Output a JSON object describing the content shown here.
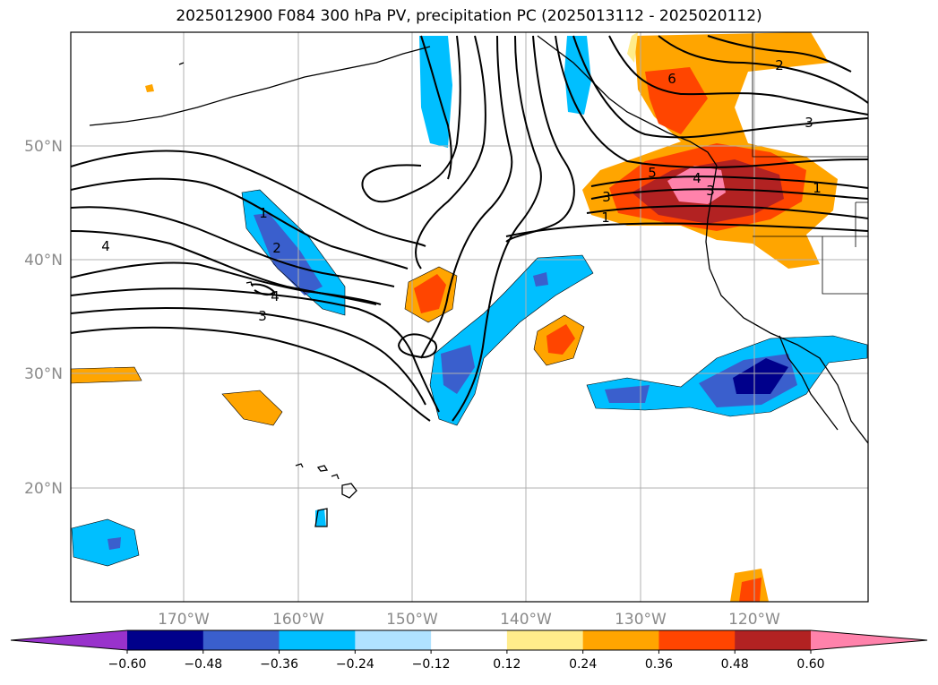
{
  "title": "2025012900 F084 300 hPa PV, precipitation PC (2025013112 - 2025020112)",
  "map": {
    "lat_labels": [
      "50°N",
      "40°N",
      "30°N",
      "20°N"
    ],
    "lon_labels": [
      "170°W",
      "160°W",
      "150°W",
      "140°W",
      "130°W",
      "120°W"
    ],
    "gridlines": true
  },
  "pv_contour_labels": [
    "1",
    "2",
    "3",
    "4",
    "3",
    "4",
    "1",
    "3",
    "5",
    "4",
    "6",
    "2",
    "3",
    "1"
  ],
  "colorbar": {
    "ticks": [
      "−0.60",
      "−0.48",
      "−0.36",
      "−0.24",
      "−0.12",
      "0.12",
      "0.24",
      "0.36",
      "0.48",
      "0.60"
    ],
    "colors": [
      "#9932cc",
      "#00008b",
      "#3a5fcd",
      "#00bfff",
      "#b0e2ff",
      "#ffffff",
      "#ffec8b",
      "#ffa500",
      "#ff4500",
      "#b22222",
      "#ff82ab"
    ],
    "extend": "both"
  }
}
